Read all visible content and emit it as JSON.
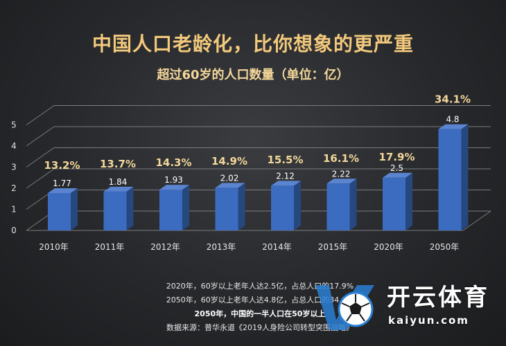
{
  "title": "中国人口老龄化，比你想象的更严重",
  "subtitle": "超过60岁的人口数量（单位：亿）",
  "chart_data": {
    "type": "bar",
    "categories": [
      "2010年",
      "2011年",
      "2012年",
      "2013年",
      "2014年",
      "2015年",
      "2020年",
      "2050年"
    ],
    "values": [
      1.77,
      1.84,
      1.93,
      2.02,
      2.12,
      2.22,
      2.5,
      4.8
    ],
    "value_labels": [
      "1.77",
      "1.84",
      "1.93",
      "2.02",
      "2.12",
      "2.22",
      "2.5",
      "4.8"
    ],
    "percent_labels": [
      "13.2%",
      "13.7%",
      "14.3%",
      "14.9%",
      "15.5%",
      "16.1%",
      "17.9%",
      "34.1%"
    ],
    "y_ticks": [
      "0",
      "1",
      "2",
      "3",
      "4",
      "5"
    ],
    "ylim": [
      0,
      5
    ],
    "grid": true,
    "bar_color": "#3b6cc0",
    "percent_color": "#f4d79a"
  },
  "notes": {
    "line1": "2020年，60岁以上老年人达2.5亿，占总人口的17.9%",
    "line2": "2050年，60岁以上老年人达4.8亿，占总人口的34.1%",
    "line3": "2050年，中国的一半人口在50岁以上",
    "source": "数据来源：普华永道《2019人身险公司转型突围战略》"
  },
  "watermark": {
    "cn": "开云体育",
    "en": "kaiyun.com",
    "colors": {
      "logo_blue": "#2a7fd4",
      "logo_dark": "#1c1c1c"
    }
  }
}
